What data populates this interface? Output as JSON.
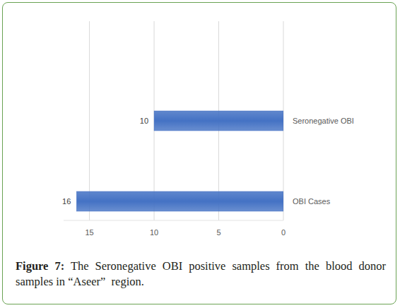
{
  "chart_data": {
    "type": "bar",
    "orientation": "horizontal",
    "title": "Figure 7: The Seronegative OBI positive samples from the blood donor samples in “Aseer”  region.",
    "categories": [
      "Seronegative OBI",
      "OBI Cases"
    ],
    "values": [
      10,
      16
    ],
    "color": "#4472c4",
    "xlim": [
      17,
      0
    ],
    "xticks": [
      0,
      5,
      10,
      15
    ],
    "grid": true,
    "data_labels": true
  }
}
